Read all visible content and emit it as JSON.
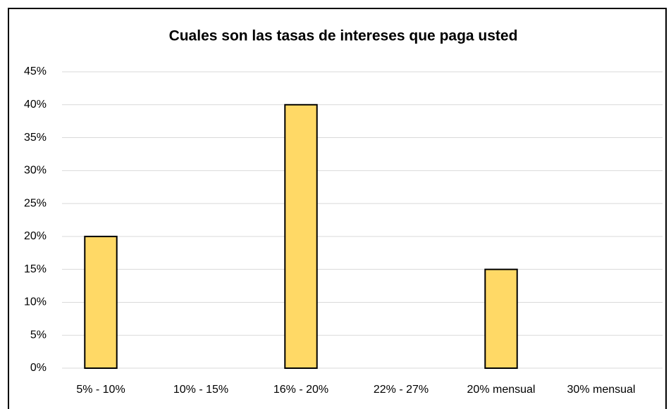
{
  "chart_data": {
    "type": "bar",
    "title": "Cuales son las tasas de intereses que paga usted",
    "categories": [
      "5% - 10%",
      "10% - 15%",
      "16% - 20%",
      "22% - 27%",
      "20% mensual",
      "30% mensual"
    ],
    "values": [
      20,
      0,
      40,
      0,
      15,
      0
    ],
    "color": "#ffd966",
    "ylim": [
      0,
      45
    ],
    "yticks": [
      {
        "value": 0,
        "label": "0%"
      },
      {
        "value": 5,
        "label": "5%"
      },
      {
        "value": 10,
        "label": "10%"
      },
      {
        "value": 15,
        "label": "15%"
      },
      {
        "value": 20,
        "label": "20%"
      },
      {
        "value": 25,
        "label": "25%"
      },
      {
        "value": 30,
        "label": "30%"
      },
      {
        "value": 35,
        "label": "35%"
      },
      {
        "value": 40,
        "label": "40%"
      },
      {
        "value": 45,
        "label": "45%"
      }
    ],
    "grid": true
  }
}
